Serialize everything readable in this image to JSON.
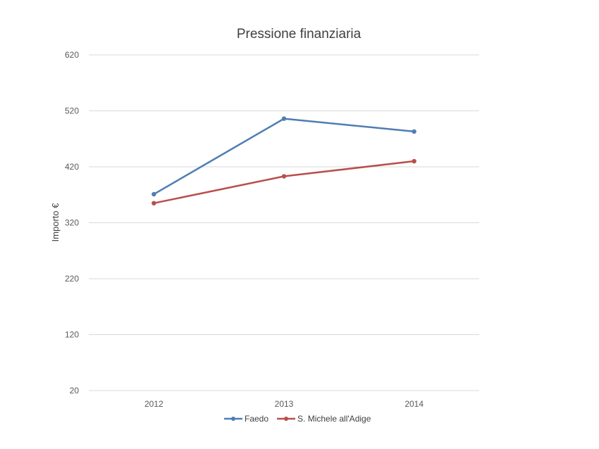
{
  "chart_data": {
    "type": "line",
    "title": "Pressione finanziaria",
    "xlabel": "",
    "ylabel": "Importo €",
    "categories": [
      "2012",
      "2013",
      "2014"
    ],
    "ylim": [
      20,
      620
    ],
    "yticks": [
      "620",
      "520",
      "420",
      "320",
      "220",
      "120",
      "20"
    ],
    "grid": true,
    "legend_position": "bottom",
    "series": [
      {
        "name": "Faedo",
        "color": "#4f7db3",
        "values": [
          371,
          506,
          483
        ]
      },
      {
        "name": "S. Michele all'Adige",
        "color": "#b94e4b",
        "values": [
          355,
          403,
          430
        ]
      }
    ]
  }
}
